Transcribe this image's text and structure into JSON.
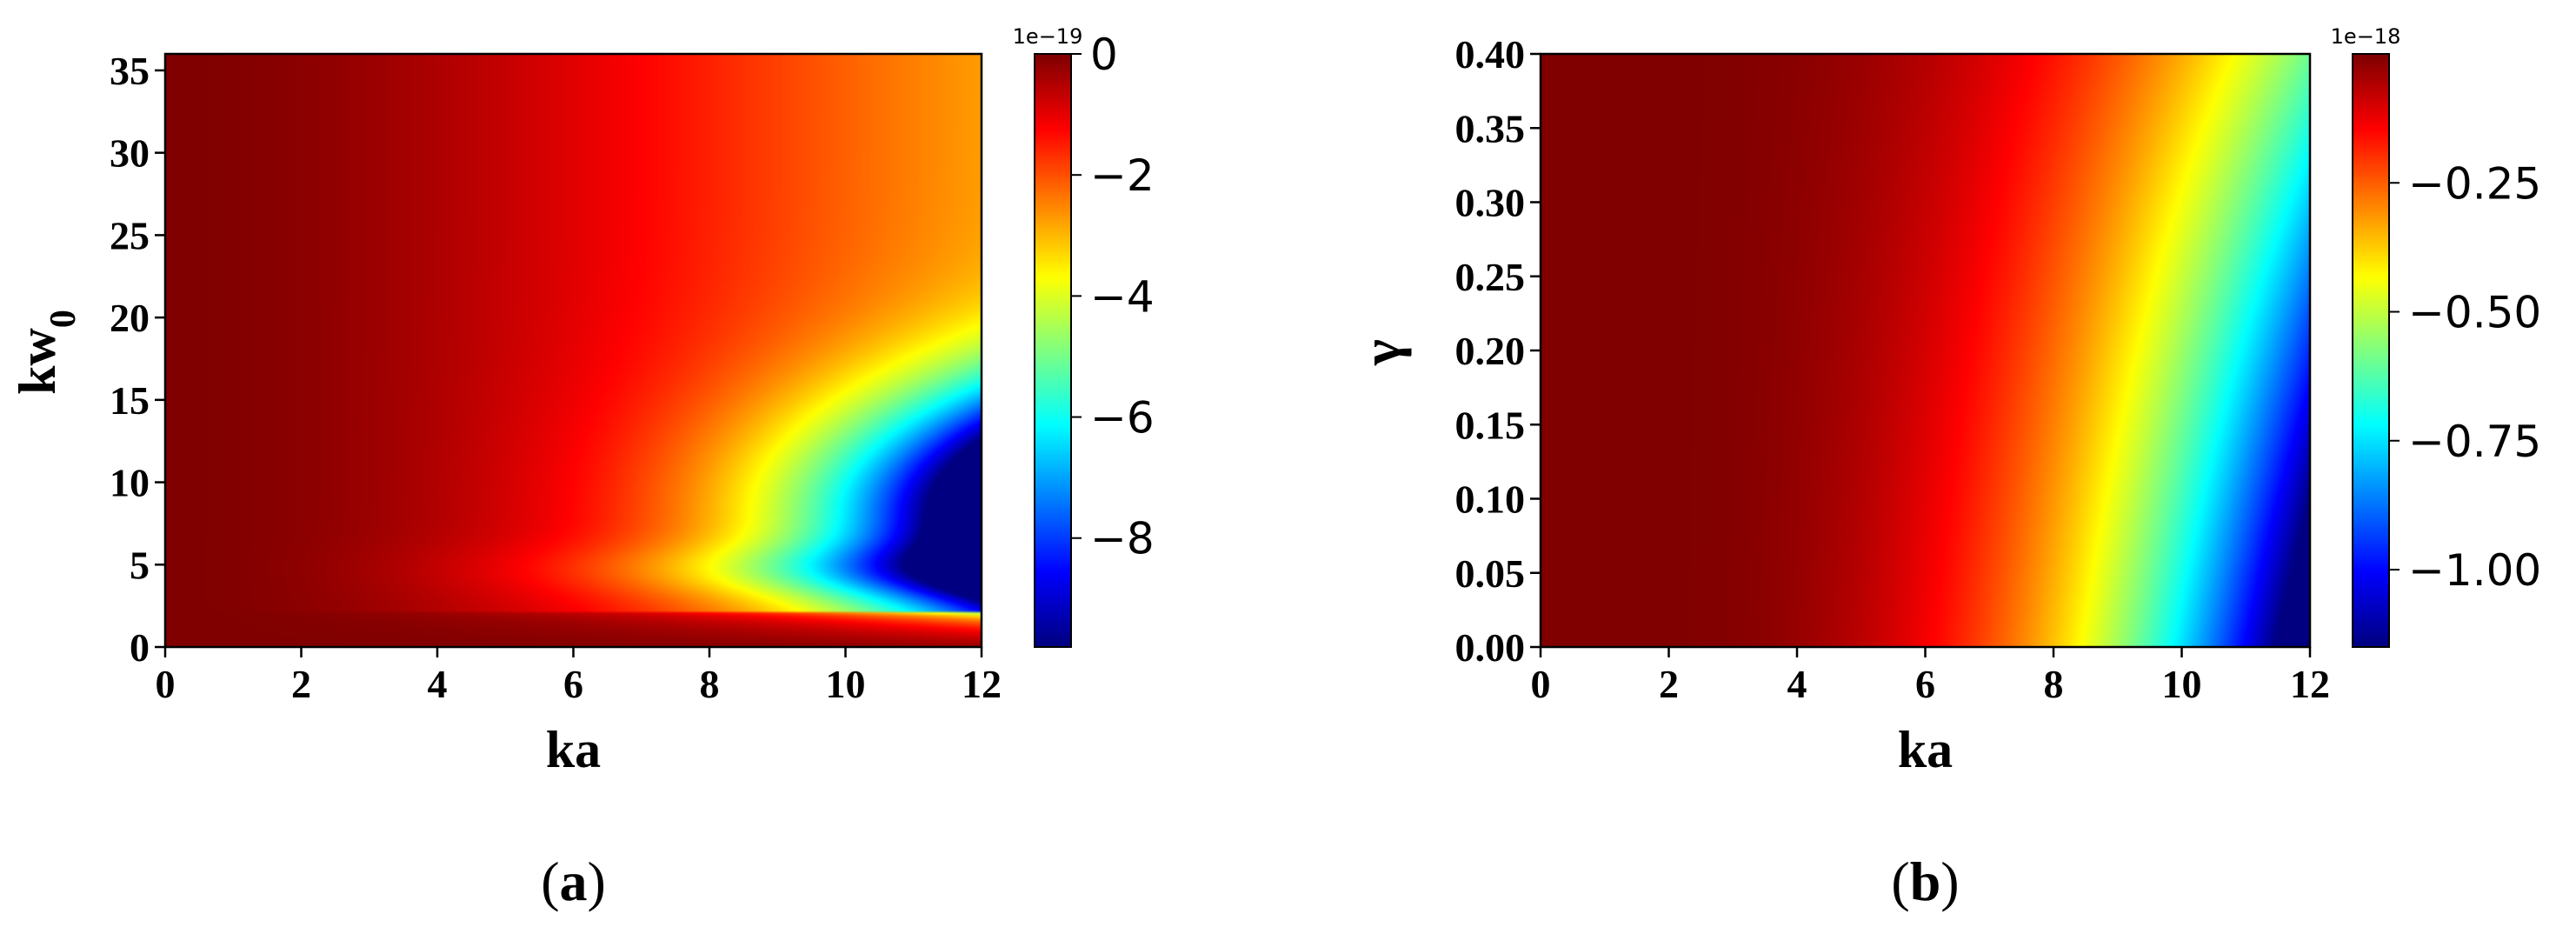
{
  "chart_data": [
    {
      "type": "heatmap",
      "caption": "(a)",
      "caption_letter": "a",
      "xlabel": "ka",
      "ylabel_base": "kw",
      "ylabel_sub": "0",
      "xlim": [
        0,
        12
      ],
      "ylim": [
        0,
        36
      ],
      "x_ticks": [
        0,
        2,
        4,
        6,
        8,
        10,
        12
      ],
      "x_tick_labels": [
        "0",
        "2",
        "4",
        "6",
        "8",
        "10",
        "12"
      ],
      "y_ticks": [
        0,
        5,
        10,
        15,
        20,
        25,
        30,
        35
      ],
      "y_tick_labels": [
        "0",
        "5",
        "10",
        "15",
        "20",
        "25",
        "30",
        "35"
      ],
      "colorbar": {
        "colormap": "jet",
        "range": [
          -9.8,
          0
        ],
        "ticks": [
          0,
          -2,
          -4,
          -6,
          -8
        ],
        "tick_labels": [
          "0",
          "−2",
          "−4",
          "−6",
          "−8"
        ],
        "offset_text": "1e−19"
      },
      "description_of_field": "0 over most of the domain; strongly negative minimum near ka=12, kw0≈8; thin red band near kw0≈2",
      "grid": false
    },
    {
      "type": "heatmap",
      "caption": "(b)",
      "caption_letter": "b",
      "xlabel": "ka",
      "ylabel": "γ",
      "xlim": [
        0,
        12
      ],
      "ylim": [
        0,
        0.4
      ],
      "x_ticks": [
        0,
        2,
        4,
        6,
        8,
        10,
        12
      ],
      "x_tick_labels": [
        "0",
        "2",
        "4",
        "6",
        "8",
        "10",
        "12"
      ],
      "y_ticks": [
        0,
        0.05,
        0.1,
        0.15,
        0.2,
        0.25,
        0.3,
        0.35,
        0.4
      ],
      "y_tick_labels": [
        "0.00",
        "0.05",
        "0.10",
        "0.15",
        "0.20",
        "0.25",
        "0.30",
        "0.35",
        "0.40"
      ],
      "colorbar": {
        "colormap": "jet",
        "range": [
          -1.15,
          0
        ],
        "ticks": [
          -0.25,
          -0.5,
          -0.75,
          -1.0
        ],
        "tick_labels": [
          "−0.25",
          "−0.50",
          "−0.75",
          "−1.00"
        ],
        "offset_text": "1e−18"
      },
      "grid": false
    }
  ]
}
